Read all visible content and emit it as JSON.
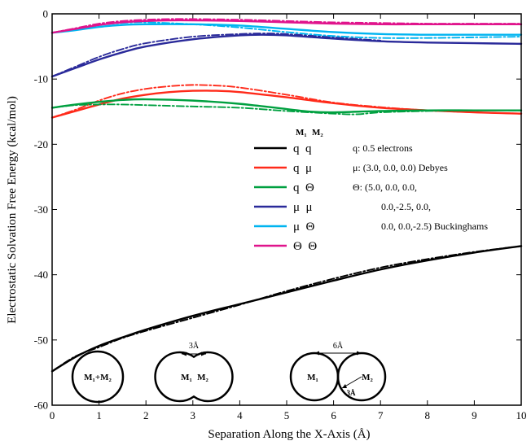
{
  "chart_data": {
    "type": "line",
    "title": "",
    "xlabel": "Separation Along the X-Axis (Å)",
    "ylabel": "Electrostatic Solvation Free Energy (kcal/mol)",
    "xlim": [
      0,
      10
    ],
    "ylim": [
      -60,
      0
    ],
    "xticks": [
      "0",
      "1",
      "2",
      "3",
      "4",
      "5",
      "6",
      "7",
      "8",
      "9",
      "10"
    ],
    "yticks": [
      "0",
      "-10",
      "-20",
      "-30",
      "-40",
      "-50",
      "-60"
    ],
    "grid": false,
    "legend": {
      "placement": "center-right",
      "header": [
        "M₁",
        "M₂"
      ],
      "entries": [
        {
          "pair": "q  q",
          "color": "#000000"
        },
        {
          "pair": "q  μ",
          "color": "#ff2a1a"
        },
        {
          "pair": "q  Θ",
          "color": "#00a040"
        },
        {
          "pair": "μ  μ",
          "color": "#2a2a9a"
        },
        {
          "pair": "μ  Θ",
          "color": "#00b4f0"
        },
        {
          "pair": "Θ  Θ",
          "color": "#e0148c"
        }
      ],
      "notes": [
        "q:  0.5 electrons",
        "μ: (3.0, 0.0, 0.0) Debyes",
        "Θ: (5.0, 0.0, 0.0,",
        "0.0,-2.5, 0.0,",
        "0.0, 0.0,-2.5) Buckinghams"
      ]
    },
    "series": [
      {
        "color": "#000000",
        "style": "solid",
        "x": [
          0,
          0.5,
          1,
          1.5,
          2,
          3,
          4,
          5,
          6,
          7,
          8,
          9,
          10
        ],
        "y": [
          -54.8,
          -52.6,
          -50.9,
          -49.6,
          -48.4,
          -46.3,
          -44.5,
          -42.7,
          -40.9,
          -39.2,
          -37.8,
          -36.6,
          -35.6
        ]
      },
      {
        "color": "#000000",
        "style": "dashdot",
        "x": [
          0,
          0.5,
          1,
          1.5,
          2,
          3,
          4,
          5,
          6,
          7,
          8,
          9,
          10
        ],
        "y": [
          -54.8,
          -52.5,
          -51.1,
          -49.7,
          -48.6,
          -46.6,
          -44.6,
          -42.5,
          -40.6,
          -38.9,
          -37.6,
          -36.5,
          -35.6
        ]
      },
      {
        "color": "#ff2a1a",
        "style": "solid",
        "x": [
          0,
          0.5,
          1,
          1.5,
          2,
          2.5,
          3,
          3.5,
          4,
          5,
          6,
          7,
          8,
          9,
          10
        ],
        "y": [
          -15.9,
          -14.9,
          -13.9,
          -13.0,
          -12.4,
          -12.0,
          -11.8,
          -11.8,
          -12.0,
          -12.8,
          -13.7,
          -14.4,
          -14.8,
          -15.1,
          -15.3
        ]
      },
      {
        "color": "#ff2a1a",
        "style": "dashdot",
        "x": [
          0,
          0.5,
          1,
          1.5,
          2,
          2.5,
          3,
          3.5,
          4,
          5,
          6,
          7,
          8,
          9,
          10
        ],
        "y": [
          -15.9,
          -14.7,
          -13.3,
          -12.2,
          -11.5,
          -11.1,
          -10.9,
          -11.0,
          -11.3,
          -12.4,
          -13.6,
          -14.3,
          -14.8,
          -15.1,
          -15.3
        ]
      },
      {
        "color": "#00a040",
        "style": "solid",
        "x": [
          0,
          0.5,
          1,
          1.5,
          2,
          3,
          4,
          5,
          5.5,
          6,
          7,
          8,
          9,
          10
        ],
        "y": [
          -14.4,
          -13.9,
          -13.5,
          -13.2,
          -13.1,
          -13.3,
          -13.8,
          -14.6,
          -15.0,
          -15.1,
          -14.9,
          -14.8,
          -14.8,
          -14.8
        ]
      },
      {
        "color": "#00a040",
        "style": "dashdot",
        "x": [
          0,
          0.5,
          1,
          1.5,
          2,
          3,
          4,
          5,
          6,
          6.5,
          7,
          8,
          9,
          10
        ],
        "y": [
          -14.4,
          -14.0,
          -13.9,
          -13.9,
          -14.0,
          -14.2,
          -14.4,
          -14.9,
          -15.3,
          -15.4,
          -15.1,
          -14.9,
          -14.8,
          -14.8
        ]
      },
      {
        "color": "#2a2a9a",
        "style": "solid",
        "x": [
          0,
          0.5,
          1,
          1.5,
          2,
          3,
          4,
          4.5,
          5,
          6,
          7,
          8,
          9,
          10
        ],
        "y": [
          -9.6,
          -8.3,
          -7.0,
          -5.9,
          -5.0,
          -3.9,
          -3.3,
          -3.2,
          -3.3,
          -3.8,
          -4.2,
          -4.4,
          -4.5,
          -4.6
        ]
      },
      {
        "color": "#2a2a9a",
        "style": "dashdot",
        "x": [
          0,
          0.5,
          1,
          1.5,
          2,
          3,
          4,
          4.5,
          5,
          6,
          7
        ],
        "y": [
          -9.6,
          -8.1,
          -6.6,
          -5.4,
          -4.5,
          -3.5,
          -3.1,
          -3.0,
          -3.1,
          -3.6,
          -4.1
        ]
      },
      {
        "color": "#00b4f0",
        "style": "solid",
        "x": [
          0,
          0.5,
          1,
          1.5,
          2,
          3,
          4,
          5,
          6,
          7,
          8,
          9,
          10
        ],
        "y": [
          -2.9,
          -2.5,
          -2.0,
          -1.7,
          -1.6,
          -1.6,
          -1.8,
          -2.3,
          -2.8,
          -3.1,
          -3.2,
          -3.2,
          -3.2
        ]
      },
      {
        "color": "#00b4f0",
        "style": "dashdot",
        "x": [
          0,
          0.5,
          1,
          1.5,
          2,
          3,
          4,
          5,
          6,
          7,
          8,
          9,
          10
        ],
        "y": [
          -2.9,
          -2.4,
          -1.7,
          -1.4,
          -1.3,
          -1.6,
          -2.1,
          -2.8,
          -3.4,
          -3.7,
          -3.7,
          -3.6,
          -3.5
        ]
      },
      {
        "color": "#e0148c",
        "style": "solid",
        "x": [
          0,
          0.5,
          1,
          1.5,
          2,
          2.5,
          3,
          4,
          5,
          6,
          7,
          8,
          9,
          10
        ],
        "y": [
          -2.9,
          -2.3,
          -1.7,
          -1.3,
          -1.1,
          -1.0,
          -1.0,
          -1.1,
          -1.3,
          -1.5,
          -1.6,
          -1.6,
          -1.6,
          -1.6
        ]
      },
      {
        "color": "#e0148c",
        "style": "dashdot",
        "x": [
          0,
          0.5,
          1,
          1.5,
          2,
          2.5,
          3,
          4,
          5,
          6,
          7,
          8,
          9,
          10
        ],
        "y": [
          -2.9,
          -2.2,
          -1.5,
          -1.1,
          -0.9,
          -0.8,
          -0.8,
          -0.9,
          -1.1,
          -1.3,
          -1.4,
          -1.5,
          -1.5,
          -1.5
        ]
      }
    ],
    "insets": {
      "a": {
        "label": "M₁+M₂"
      },
      "b": {
        "label1": "M₁",
        "label2": "M₂",
        "measure": "3Å"
      },
      "c": {
        "label1": "M₁",
        "label2": "M₂",
        "measure": "6Å",
        "radius_label": "3Å"
      }
    }
  }
}
